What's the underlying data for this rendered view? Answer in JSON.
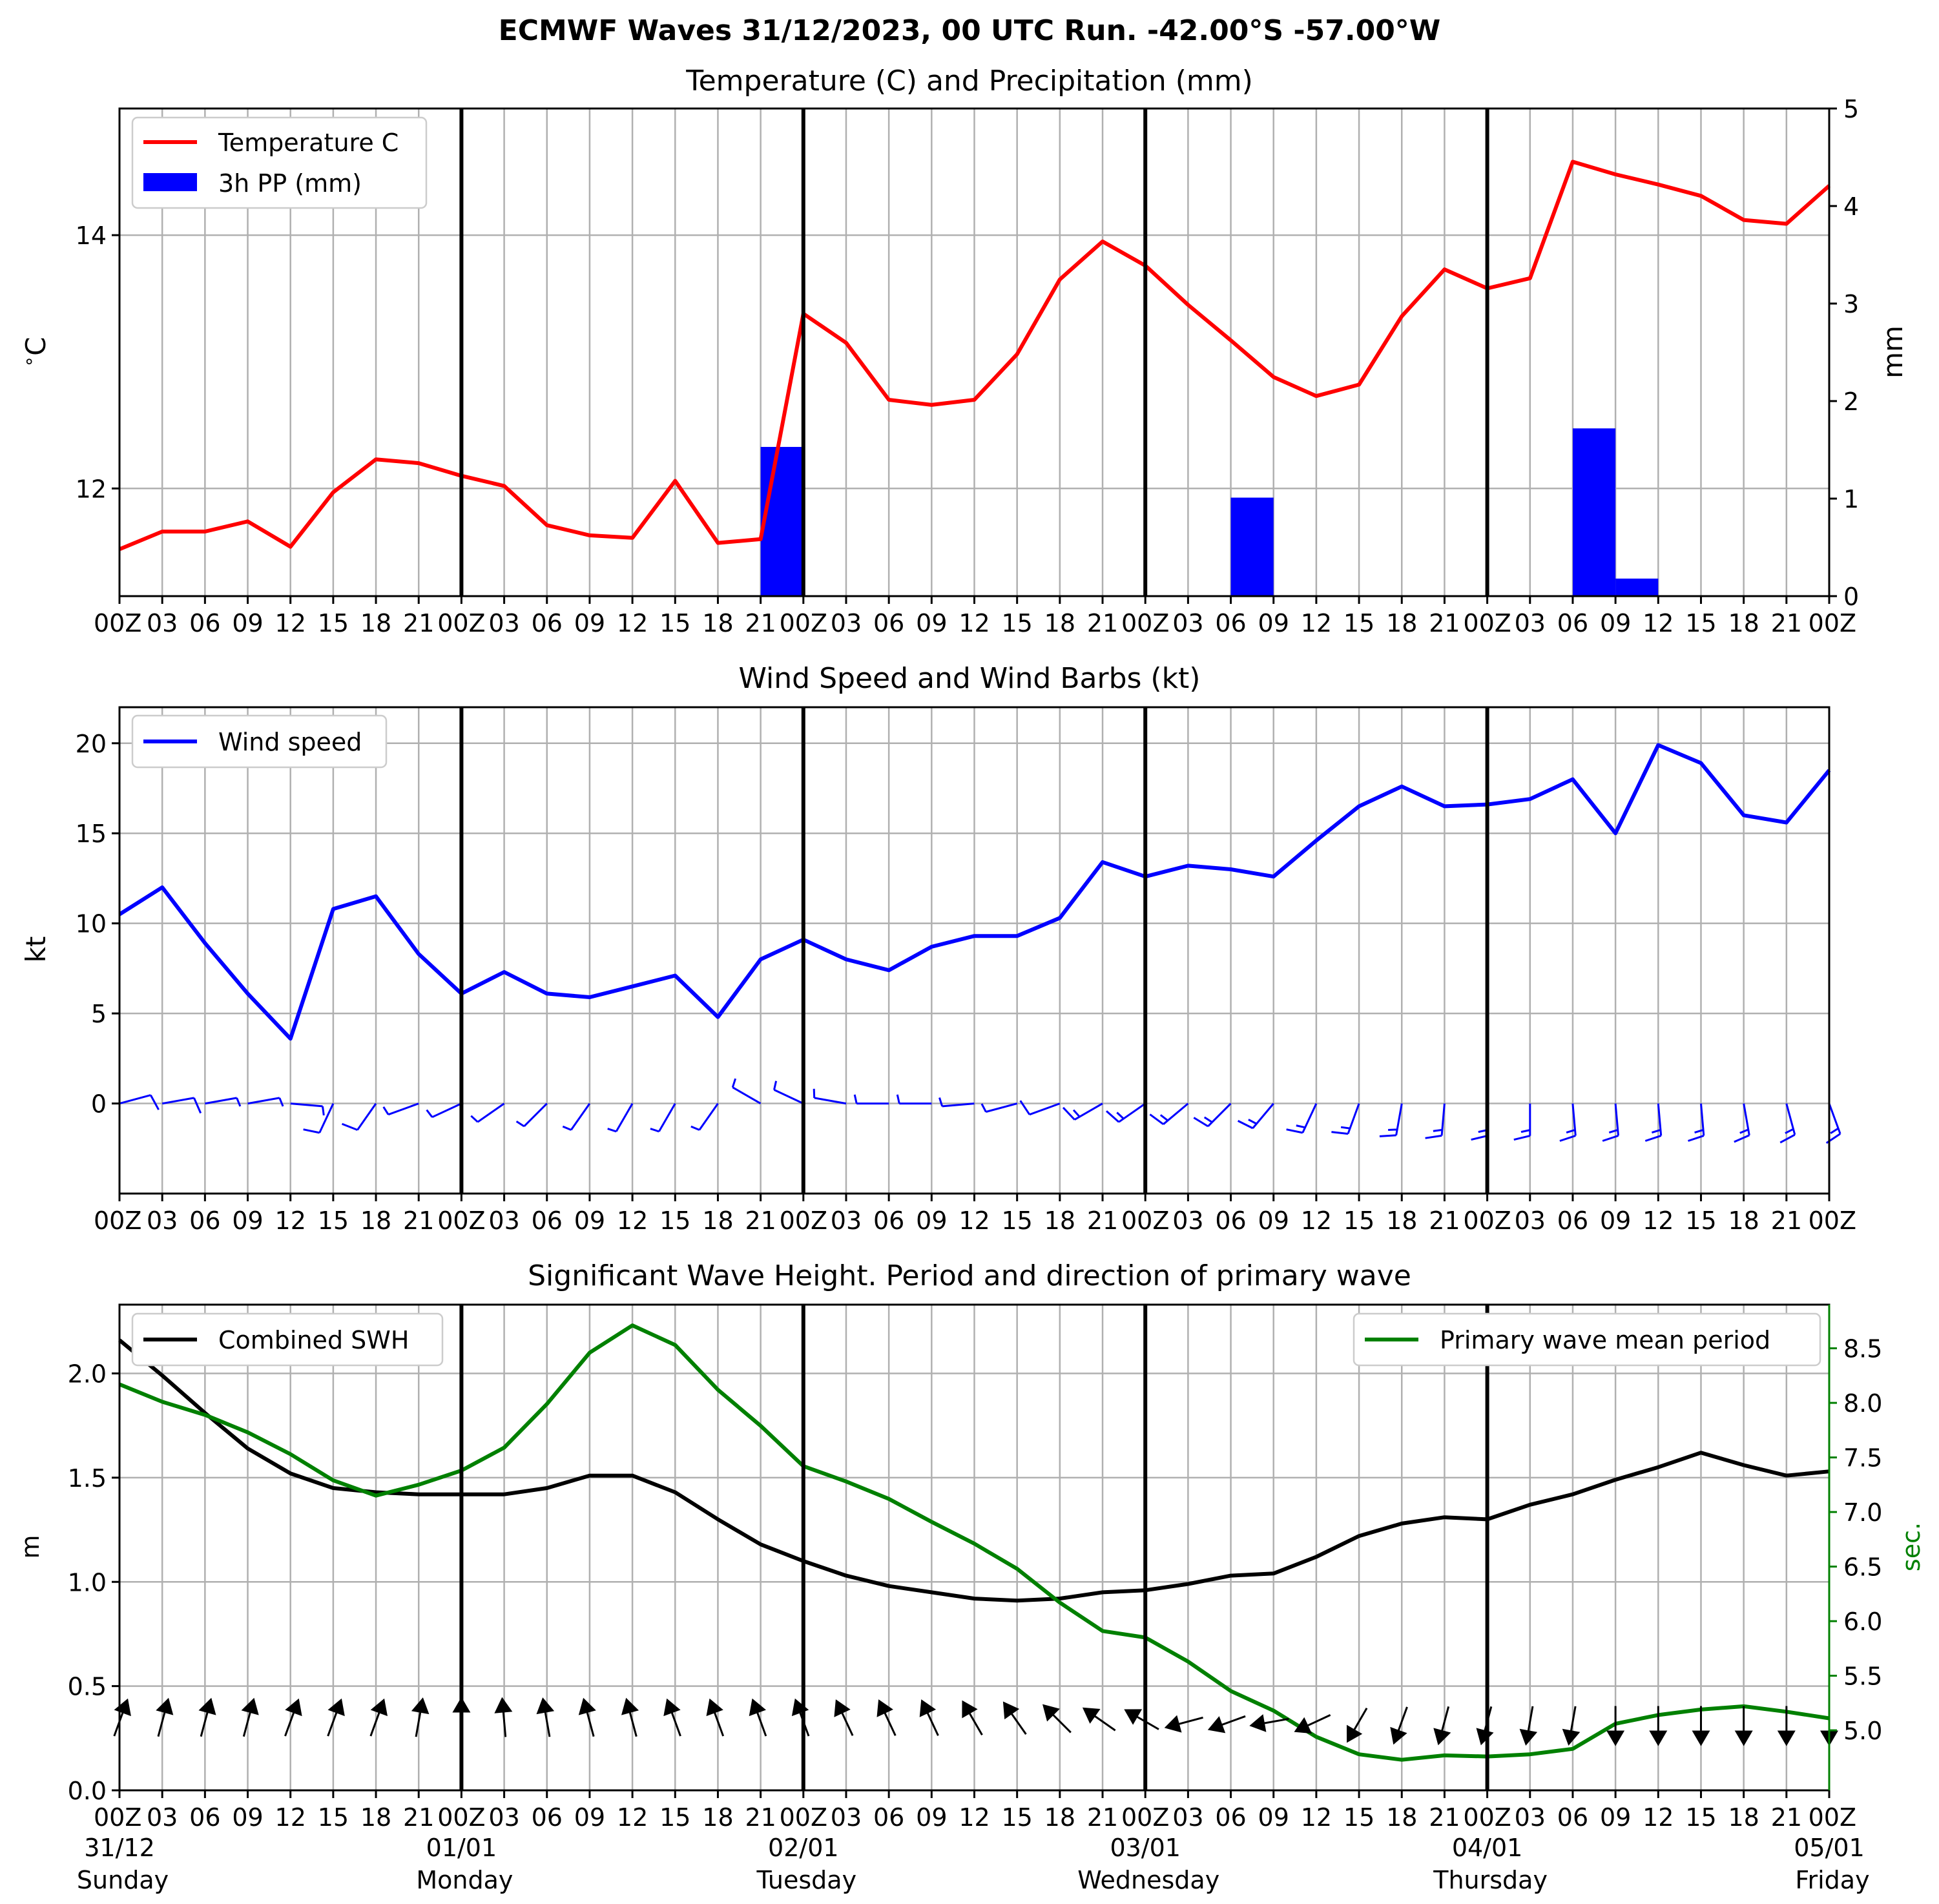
{
  "title": "ECMWF Waves 31/12/2023, 00 UTC Run. -42.00°S -57.00°W",
  "time_axis": {
    "tick_labels": [
      "00Z",
      "03",
      "06",
      "09",
      "12",
      "15",
      "18",
      "21",
      "00Z",
      "03",
      "06",
      "09",
      "12",
      "15",
      "18",
      "21",
      "00Z",
      "03",
      "06",
      "09",
      "12",
      "15",
      "18",
      "21",
      "00Z",
      "03",
      "06",
      "09",
      "12",
      "15",
      "18",
      "21",
      "00Z",
      "03",
      "06",
      "09",
      "12",
      "15",
      "18",
      "21",
      "00Z"
    ],
    "day_dates": [
      "31/12",
      "01/01",
      "02/01",
      "03/01",
      "04/01",
      "05/01"
    ],
    "day_names": [
      "Sunday",
      "Monday",
      "Tuesday",
      "Wednesday",
      "Thursday",
      "Friday"
    ]
  },
  "colors": {
    "temperature": "#ff0000",
    "precipitation": "#0000ff",
    "wind": "#0000ff",
    "swh": "#000000",
    "period": "#008000",
    "grid": "#b0b0b0"
  },
  "chart_data": [
    {
      "type": "line",
      "title": "Temperature (C) and Precipitation (mm)",
      "ylabel": "$^\\circ$C",
      "ylabel_right": "mm",
      "ylim": [
        11.15,
        15.0
      ],
      "ylim_right": [
        0,
        5
      ],
      "yticks": [
        "12",
        "14"
      ],
      "yticks_right": [
        "0",
        "1",
        "2",
        "3",
        "4",
        "5"
      ],
      "legend": {
        "placement": "top-left",
        "entries": [
          "Temperature C",
          "3h PP (mm)"
        ]
      },
      "grid": true,
      "series": [
        {
          "name": "Temperature C",
          "values": [
            11.52,
            11.66,
            11.66,
            11.74,
            11.54,
            11.97,
            12.23,
            12.2,
            12.1,
            12.02,
            11.71,
            11.63,
            11.61,
            12.06,
            11.57,
            11.6,
            13.38,
            13.15,
            12.7,
            12.66,
            12.7,
            13.06,
            13.65,
            13.95,
            13.76,
            13.45,
            13.17,
            12.88,
            12.73,
            12.82,
            13.36,
            13.73,
            13.58,
            13.66,
            14.58,
            14.48,
            14.4,
            14.31,
            14.12,
            14.09,
            14.39
          ]
        },
        {
          "name": "3h PP (mm)",
          "type": "bar",
          "values": [
            0,
            0,
            0,
            0,
            0,
            0,
            0,
            0,
            0,
            0,
            0,
            0,
            0,
            0.01,
            0.01,
            1.53,
            0,
            0,
            0,
            0,
            0,
            0,
            0,
            0,
            0,
            0,
            1.01,
            0,
            0,
            0,
            0,
            0,
            0,
            0,
            1.72,
            0.18,
            0,
            0,
            0,
            0
          ]
        }
      ]
    },
    {
      "type": "line",
      "title": "Wind Speed and Wind Barbs (kt)",
      "ylabel": "kt",
      "ylim": [
        -5,
        22
      ],
      "yticks": [
        "0",
        "5",
        "10",
        "15",
        "20"
      ],
      "legend": {
        "placement": "top-left",
        "entries": [
          "Wind speed"
        ]
      },
      "grid": true,
      "series": [
        {
          "name": "Wind speed",
          "values": [
            10.5,
            12.0,
            8.9,
            6.1,
            3.6,
            10.8,
            11.5,
            8.3,
            6.1,
            7.3,
            6.1,
            5.9,
            6.5,
            7.1,
            4.8,
            8.0,
            9.1,
            8.0,
            7.4,
            8.7,
            9.3,
            9.3,
            10.3,
            13.4,
            12.6,
            13.2,
            13.0,
            12.6,
            14.6,
            16.5,
            17.6,
            16.5,
            16.6,
            16.9,
            18.0,
            15.0,
            19.9,
            18.9,
            16.0,
            15.6,
            18.5
          ]
        }
      ],
      "barb_direction_from_deg": [
        75,
        80,
        80,
        80,
        95,
        205,
        215,
        250,
        245,
        235,
        225,
        215,
        210,
        210,
        215,
        300,
        295,
        280,
        270,
        270,
        265,
        255,
        250,
        240,
        235,
        230,
        225,
        220,
        205,
        200,
        190,
        185,
        180,
        180,
        175,
        175,
        175,
        175,
        170,
        165,
        160
      ]
    },
    {
      "type": "line",
      "title": "Significant Wave Height. Period and direction of primary wave",
      "ylabel": "m",
      "ylabel_right": "sec.",
      "ylim": [
        0.0,
        2.33
      ],
      "ylim_right": [
        4.45,
        8.9
      ],
      "yticks": [
        "0.0",
        "0.5",
        "1.0",
        "1.5",
        "2.0"
      ],
      "yticks_right": [
        "5.0",
        "5.5",
        "6.0",
        "6.5",
        "7.0",
        "7.5",
        "8.0",
        "8.5"
      ],
      "legend": [
        {
          "placement": "top-left",
          "entries": [
            "Combined SWH"
          ]
        },
        {
          "placement": "top-right",
          "entries": [
            "Primary wave mean period"
          ]
        }
      ],
      "grid": true,
      "series": [
        {
          "name": "Combined SWH",
          "values": [
            2.16,
            1.99,
            1.81,
            1.64,
            1.52,
            1.45,
            1.43,
            1.42,
            1.42,
            1.42,
            1.45,
            1.51,
            1.51,
            1.43,
            1.3,
            1.18,
            1.1,
            1.03,
            0.98,
            0.95,
            0.92,
            0.91,
            0.92,
            0.95,
            0.96,
            0.99,
            1.03,
            1.04,
            1.12,
            1.22,
            1.28,
            1.31,
            1.3,
            1.37,
            1.42,
            1.49,
            1.55,
            1.62,
            1.56,
            1.51,
            1.53
          ]
        },
        {
          "name": "Primary wave mean period",
          "values": [
            8.17,
            8.01,
            7.89,
            7.73,
            7.53,
            7.29,
            7.15,
            7.25,
            7.38,
            7.59,
            7.99,
            8.46,
            8.71,
            8.53,
            8.12,
            7.79,
            7.42,
            7.28,
            7.12,
            6.91,
            6.71,
            6.48,
            6.17,
            5.91,
            5.85,
            5.63,
            5.36,
            5.18,
            4.94,
            4.78,
            4.73,
            4.77,
            4.76,
            4.78,
            4.83,
            5.06,
            5.14,
            5.19,
            5.22,
            5.17,
            5.11
          ]
        }
      ],
      "wave_direction_from_deg": [
        200,
        195,
        195,
        195,
        200,
        200,
        200,
        190,
        180,
        175,
        170,
        165,
        165,
        160,
        160,
        160,
        160,
        155,
        155,
        155,
        150,
        145,
        135,
        125,
        120,
        75,
        70,
        80,
        65,
        30,
        20,
        15,
        15,
        10,
        10,
        0,
        0,
        0,
        0,
        0,
        0
      ]
    }
  ]
}
